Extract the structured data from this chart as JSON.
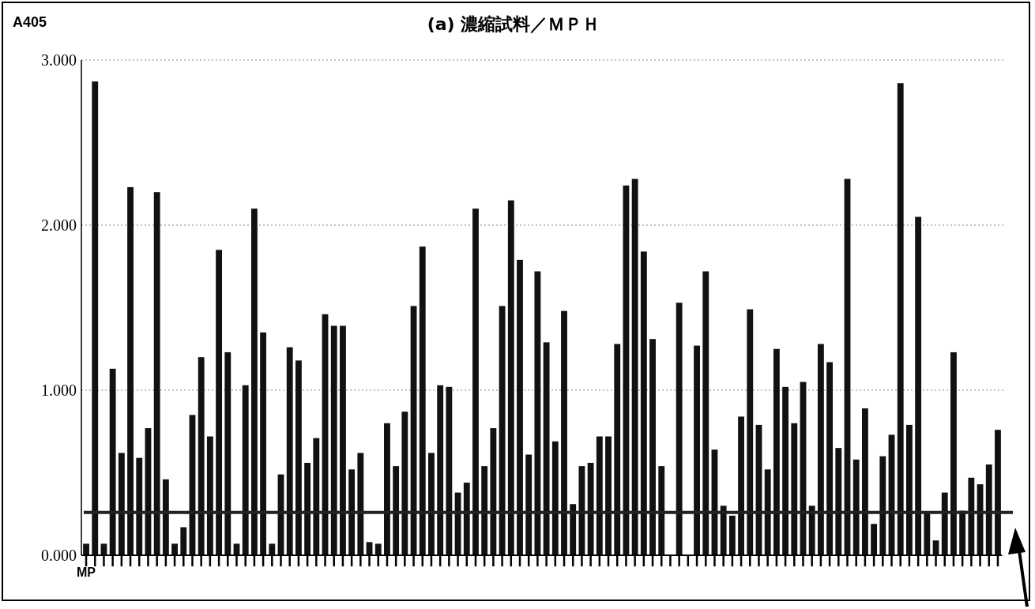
{
  "chart_data": {
    "type": "bar",
    "title": "(a) 濃縮試料／ＭＰＨ",
    "ylabel": "A405",
    "categories": [
      "MP",
      null,
      null,
      null,
      null,
      null,
      null,
      null,
      null,
      null,
      null,
      null,
      null,
      null,
      null,
      null,
      null,
      null,
      null,
      null,
      null,
      null,
      null,
      null,
      null,
      null,
      null,
      null,
      null,
      null,
      null,
      null,
      null,
      null,
      null,
      null,
      null,
      null,
      null,
      null,
      null,
      null,
      null,
      null,
      null,
      null,
      null,
      null,
      null,
      null,
      null,
      null,
      null,
      null,
      null,
      null,
      null,
      null,
      null,
      null,
      null,
      null,
      null,
      null,
      null,
      null,
      null,
      null,
      null,
      null,
      null,
      null,
      null,
      null,
      null,
      null,
      null,
      null,
      null,
      null,
      null,
      null,
      null,
      null,
      null,
      null,
      null,
      null,
      null,
      null,
      null,
      null,
      null,
      null,
      null,
      null,
      null,
      null,
      null,
      null,
      null,
      null,
      null,
      null
    ],
    "values": [
      0.07,
      2.87,
      0.07,
      1.13,
      0.62,
      2.23,
      0.59,
      0.77,
      2.2,
      0.46,
      0.07,
      0.17,
      0.85,
      1.2,
      0.72,
      1.85,
      1.23,
      0.07,
      1.03,
      2.1,
      1.35,
      0.07,
      0.49,
      1.26,
      1.18,
      0.56,
      0.71,
      1.46,
      1.39,
      1.39,
      0.52,
      0.62,
      0.08,
      0.07,
      0.8,
      0.54,
      0.87,
      1.51,
      1.87,
      0.62,
      1.03,
      1.02,
      0.38,
      0.44,
      2.1,
      0.54,
      0.77,
      1.51,
      2.15,
      1.79,
      0.61,
      1.72,
      1.29,
      0.69,
      1.48,
      0.31,
      0.54,
      0.56,
      0.72,
      0.72,
      1.28,
      2.24,
      2.28,
      1.84,
      1.31,
      0.54,
      null,
      1.53,
      null,
      1.27,
      1.72,
      0.64,
      0.3,
      0.24,
      0.84,
      1.49,
      0.79,
      0.52,
      1.25,
      1.02,
      0.8,
      1.05,
      0.3,
      1.28,
      1.17,
      0.65,
      2.28,
      0.58,
      0.89,
      0.19,
      0.6,
      0.73,
      2.86,
      0.79,
      2.05,
      0.26,
      0.09,
      0.38,
      1.23,
      0.27,
      0.47,
      0.43,
      0.55,
      0.76
    ],
    "color": "#111111",
    "ylim": [
      0,
      3
    ],
    "yticks": [
      {
        "value": 0,
        "label": "0.000"
      },
      {
        "value": 1,
        "label": "1.000"
      },
      {
        "value": 2,
        "label": "2.000"
      },
      {
        "value": 3,
        "label": "3.000"
      }
    ],
    "grid": "y",
    "ref_lines": [
      {
        "axis": "y",
        "value": 0.26,
        "color": "#222222",
        "line_style": "solid"
      }
    ]
  }
}
